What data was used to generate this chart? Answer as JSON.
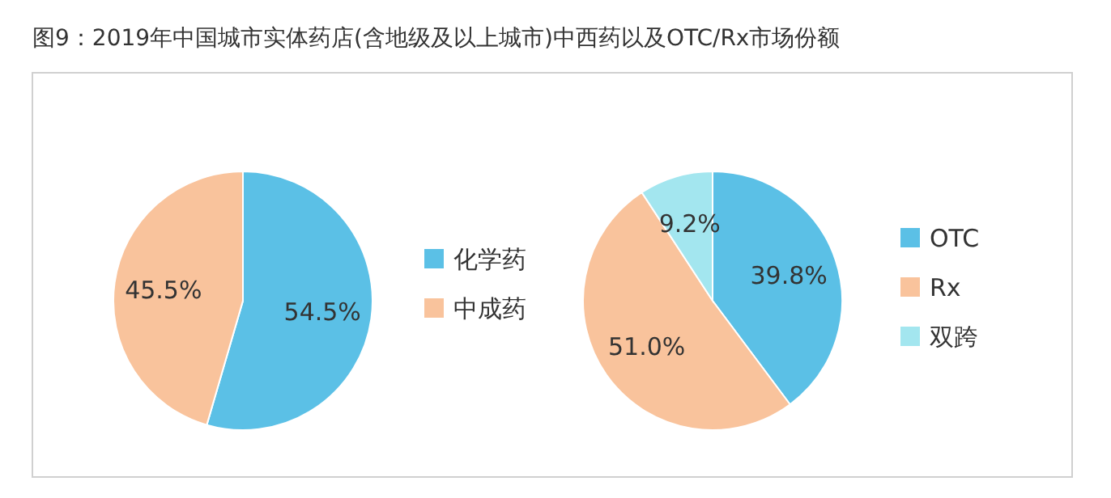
{
  "chart_data": [
    {
      "type": "pie",
      "title": "图9：2019年中国城市实体药店(含地级及以上城市)中西药以及OTC/Rx市场份额",
      "categories": [
        "化学药",
        "中成药"
      ],
      "values": [
        54.5,
        45.5
      ],
      "colors": [
        "#5bc0e6",
        "#f9c39c"
      ],
      "value_labels": [
        "54.5%",
        "45.5%"
      ],
      "legend": "right"
    },
    {
      "type": "pie",
      "categories": [
        "OTC",
        "Rx",
        "双跨"
      ],
      "values": [
        39.8,
        51.0,
        9.2
      ],
      "colors": [
        "#5bc0e6",
        "#f9c39c",
        "#a3e6ef"
      ],
      "value_labels": [
        "39.8%",
        "51.0%",
        "9.2%"
      ],
      "legend": "right"
    }
  ]
}
